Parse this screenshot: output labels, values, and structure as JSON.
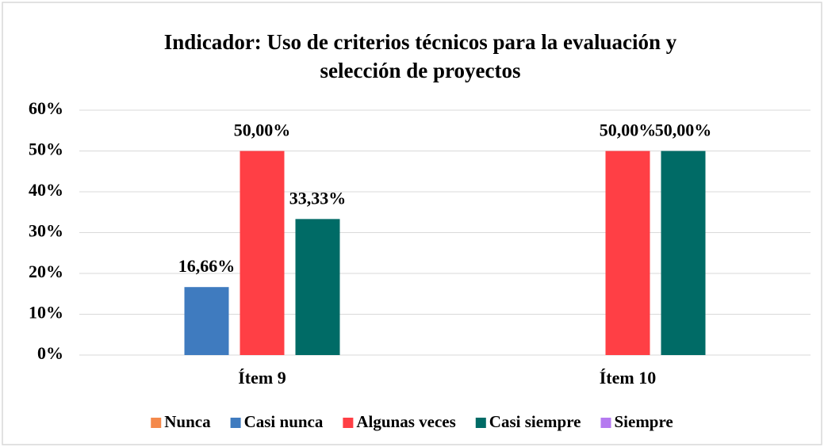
{
  "chart_data": {
    "type": "bar",
    "title": [
      "Indicador: Uso de criterios técnicos para la evaluación y",
      "selección de proyectos"
    ],
    "categories": [
      "Ítem 9",
      "Ítem 10"
    ],
    "series": [
      {
        "name": "Nunca",
        "color": "#f4894b",
        "values": [
          null,
          null
        ],
        "value_labels": [
          null,
          null
        ]
      },
      {
        "name": "Casi nunca",
        "color": "#3f7bbf",
        "values": [
          16.66,
          null
        ],
        "value_labels": [
          "16,66%",
          null
        ]
      },
      {
        "name": "Algunas veces",
        "color": "#ff3f45",
        "values": [
          50,
          50
        ],
        "value_labels": [
          "50,00%",
          "50,00%"
        ]
      },
      {
        "name": "Casi siempre",
        "color": "#006b66",
        "values": [
          33.33,
          50
        ],
        "value_labels": [
          "33,33%",
          "50,00%"
        ]
      },
      {
        "name": "Siempre",
        "color": "#b57af0",
        "values": [
          null,
          null
        ],
        "value_labels": [
          null,
          null
        ]
      }
    ],
    "ylim": [
      0,
      60
    ],
    "yticks": [
      {
        "value": 0,
        "label": "0%"
      },
      {
        "value": 10,
        "label": "10%"
      },
      {
        "value": 20,
        "label": "20%"
      },
      {
        "value": 30,
        "label": "30%"
      },
      {
        "value": 40,
        "label": "40%"
      },
      {
        "value": 50,
        "label": "50%"
      },
      {
        "value": 60,
        "label": "60%"
      }
    ],
    "grid": true,
    "legend": "bottom"
  }
}
